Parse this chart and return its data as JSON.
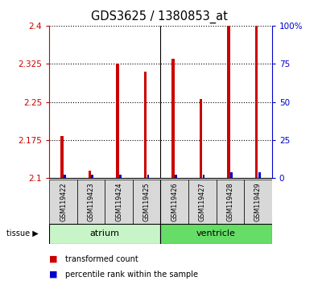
{
  "title": "GDS3625 / 1380853_at",
  "samples": [
    "GSM119422",
    "GSM119423",
    "GSM119424",
    "GSM119425",
    "GSM119426",
    "GSM119427",
    "GSM119428",
    "GSM119429"
  ],
  "red_values": [
    2.182,
    2.115,
    2.325,
    2.31,
    2.335,
    2.255,
    2.4,
    2.4
  ],
  "blue_percentiles": [
    2,
    2,
    2,
    2,
    2,
    2,
    4,
    4
  ],
  "ymin": 2.1,
  "ymax": 2.4,
  "yticks": [
    2.1,
    2.175,
    2.25,
    2.325,
    2.4
  ],
  "ytick_labels": [
    "2.1",
    "2.175",
    "2.25",
    "2.325",
    "2.4"
  ],
  "right_yticks": [
    0,
    25,
    50,
    75,
    100
  ],
  "right_ytick_labels": [
    "0",
    "25",
    "50",
    "75",
    "100%"
  ],
  "groups": [
    {
      "label": "atrium",
      "start": 0,
      "end": 3,
      "color": "#c8f5c8"
    },
    {
      "label": "ventricle",
      "start": 4,
      "end": 7,
      "color": "#66dd66"
    }
  ],
  "tissue_label": "tissue",
  "legend_red": "transformed count",
  "legend_blue": "percentile rank within the sample",
  "red_color": "#cc0000",
  "blue_color": "#0000cc",
  "bar_bg": "#d8d8d8",
  "plot_bg": "#ffffff",
  "grid_color": "#000000",
  "baseline": 2.1,
  "red_bar_width": 0.1,
  "blue_bar_width": 0.08
}
